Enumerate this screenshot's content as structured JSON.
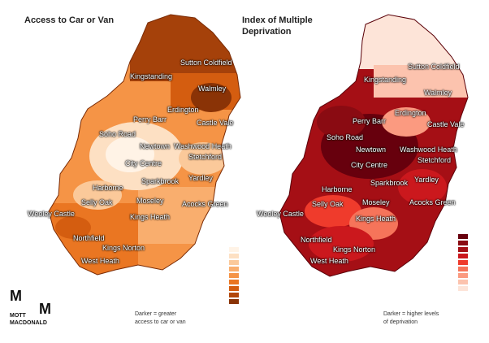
{
  "maps": [
    {
      "title": "Access to Car or Van",
      "legend_note": "Darker = greater\naccess to car or van",
      "legend_colors": [
        "#fff3e6",
        "#fde0c3",
        "#fbc99a",
        "#f9ae6e",
        "#f59446",
        "#ea7622",
        "#d45d10",
        "#b2470a",
        "#8a3306"
      ]
    },
    {
      "title": "Index of Multiple\nDeprivation",
      "legend_note": "Darker = higher levels\nof deprivation",
      "legend_colors": [
        "#67000d",
        "#8a0b12",
        "#a50f15",
        "#cb181d",
        "#ef3b2c",
        "#f6745a",
        "#fb9a80",
        "#fcc3ae",
        "#fde4d8"
      ]
    }
  ],
  "places": [
    "Sutton Coldfield",
    "Kingstanding",
    "Walmley",
    "Erdington",
    "Perry Barr",
    "Castle Vale",
    "Soho Road",
    "Newtown",
    "Washwood Heath",
    "Stetchford",
    "City Centre",
    "Sparkbrook",
    "Yardley",
    "Harborne",
    "Selly Oak",
    "Moseley",
    "Acocks Green",
    "Weoley Castle",
    "Kings Heath",
    "Northfield",
    "Kings Norton",
    "West Heath"
  ],
  "logo": {
    "mark": "M",
    "name": "MOTT\nMACDONALD"
  }
}
